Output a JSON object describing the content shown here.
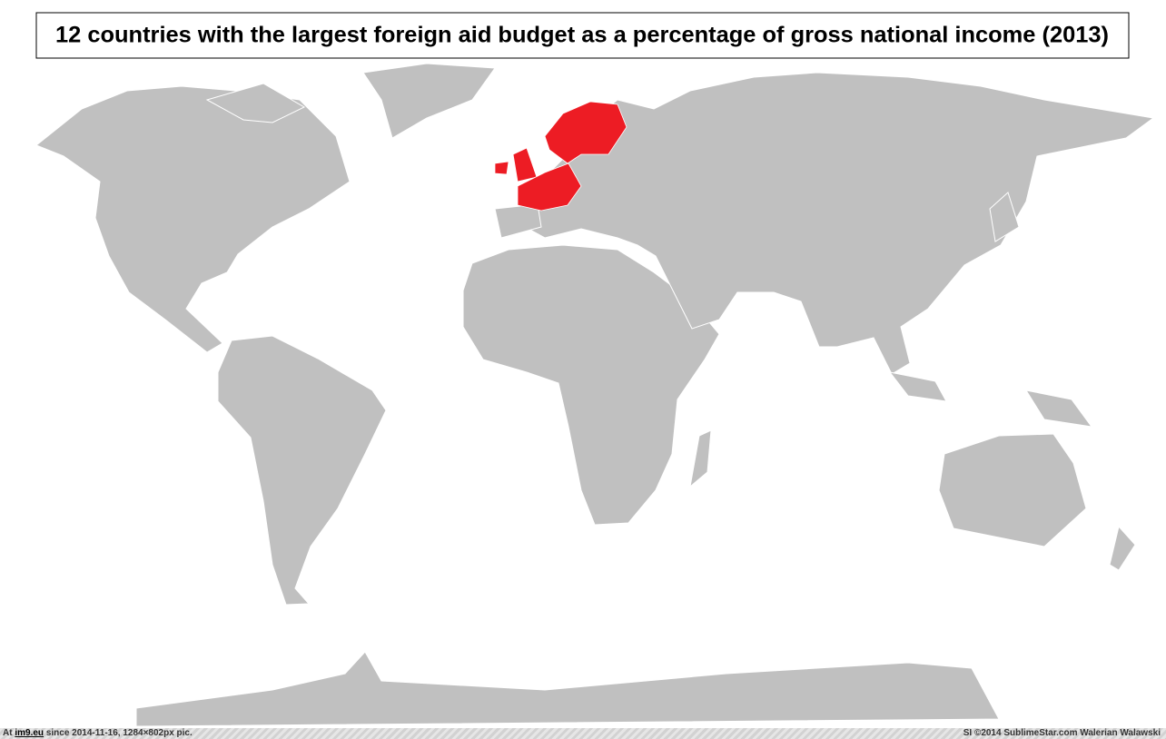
{
  "header": {
    "title": "12 countries with the largest foreign aid budget as a percentage of gross national income (2013)"
  },
  "footer": {
    "left_prefix": "At",
    "left_link": "im9.eu",
    "left_suffix": "since 2014-11-16, 1284×802px pic.",
    "right": "SI ©2014 SublimeStar.com Walerian Walawski"
  }
}
